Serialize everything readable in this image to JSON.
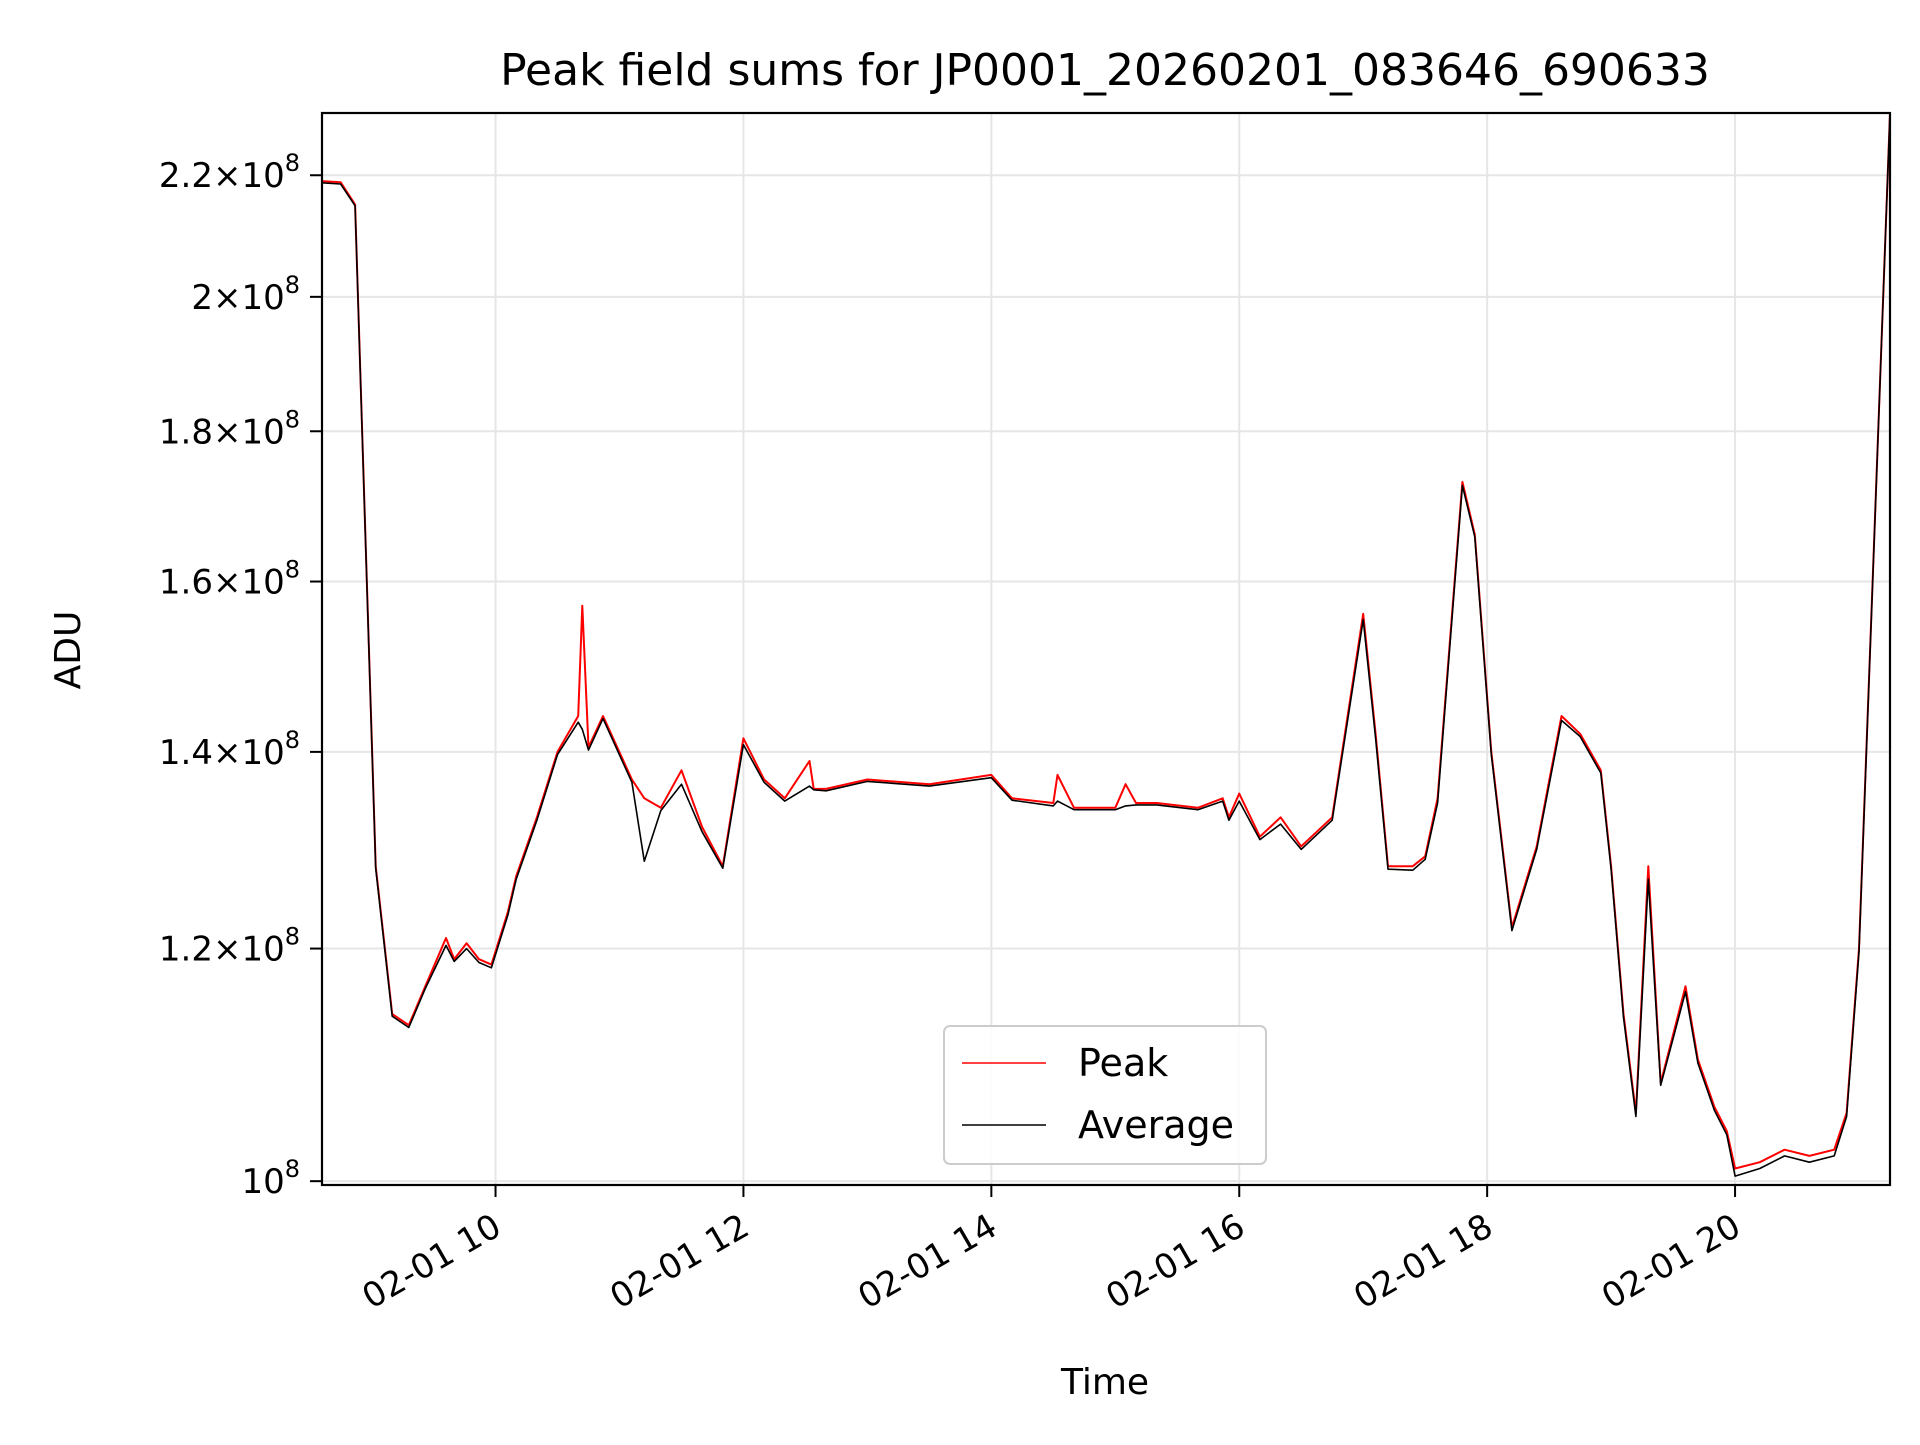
{
  "chart_data": {
    "type": "line",
    "title": "Peak field sums for JP0001_20260201_083646_690633",
    "xlabel": "Time",
    "ylabel": "ADU",
    "y_scale": "log",
    "ylim": [
      99700000,
      231000000
    ],
    "xlim": [
      "02-01 08:36",
      "02-01 21:15"
    ],
    "grid": true,
    "legend_position": "lower-center",
    "x_ticks": [
      {
        "label": "02-01 10",
        "value": "02-01 10:00"
      },
      {
        "label": "02-01 12",
        "value": "02-01 12:00"
      },
      {
        "label": "02-01 14",
        "value": "02-01 14:00"
      },
      {
        "label": "02-01 16",
        "value": "02-01 16:00"
      },
      {
        "label": "02-01 18",
        "value": "02-01 18:00"
      },
      {
        "label": "02-01 20",
        "value": "02-01 20:00"
      }
    ],
    "y_ticks": [
      {
        "mantissa": "",
        "exponent": "8",
        "value": 100000000
      },
      {
        "mantissa": "1.2",
        "exponent": "8",
        "value": 120000000
      },
      {
        "mantissa": "1.4",
        "exponent": "8",
        "value": 140000000
      },
      {
        "mantissa": "1.6",
        "exponent": "8",
        "value": 160000000
      },
      {
        "mantissa": "1.8",
        "exponent": "8",
        "value": 180000000
      },
      {
        "mantissa": "2",
        "exponent": "8",
        "value": 200000000
      },
      {
        "mantissa": "2.2",
        "exponent": "8",
        "value": 220000000
      }
    ],
    "series": [
      {
        "name": "Peak",
        "color": "#ff0000",
        "x": [
          "02-01 08:36",
          "02-01 08:45",
          "02-01 08:52",
          "02-01 09:02",
          "02-01 09:10",
          "02-01 09:18",
          "02-01 09:26",
          "02-01 09:36",
          "02-01 09:40",
          "02-01 09:46",
          "02-01 09:52",
          "02-01 09:58",
          "02-01 10:06",
          "02-01 10:10",
          "02-01 10:20",
          "02-01 10:30",
          "02-01 10:40",
          "02-01 10:42",
          "02-01 10:45",
          "02-01 10:52",
          "02-01 11:06",
          "02-01 11:12",
          "02-01 11:20",
          "02-01 11:30",
          "02-01 11:40",
          "02-01 11:50",
          "02-01 12:00",
          "02-01 12:10",
          "02-01 12:20",
          "02-01 12:32",
          "02-01 12:34",
          "02-01 12:40",
          "02-01 13:00",
          "02-01 13:30",
          "02-01 14:00",
          "02-01 14:10",
          "02-01 14:30",
          "02-01 14:32",
          "02-01 14:40",
          "02-01 15:00",
          "02-01 15:05",
          "02-01 15:10",
          "02-01 15:20",
          "02-01 15:40",
          "02-01 15:52",
          "02-01 15:55",
          "02-01 16:00",
          "02-01 16:10",
          "02-01 16:20",
          "02-01 16:30",
          "02-01 16:45",
          "02-01 17:00",
          "02-01 17:06",
          "02-01 17:12",
          "02-01 17:24",
          "02-01 17:30",
          "02-01 17:36",
          "02-01 17:48",
          "02-01 17:54",
          "02-01 18:02",
          "02-01 18:12",
          "02-01 18:24",
          "02-01 18:36",
          "02-01 18:45",
          "02-01 18:55",
          "02-01 19:00",
          "02-01 19:06",
          "02-01 19:12",
          "02-01 19:18",
          "02-01 19:24",
          "02-01 19:36",
          "02-01 19:42",
          "02-01 19:50",
          "02-01 19:56",
          "02-01 20:00",
          "02-01 20:12",
          "02-01 20:24",
          "02-01 20:36",
          "02-01 20:48",
          "02-01 20:54",
          "02-01 21:00",
          "02-01 21:15"
        ],
        "values": [
          219000000,
          218800000,
          215000000,
          128000000,
          114000000,
          113000000,
          116500000,
          121000000,
          119000000,
          120500000,
          119000000,
          118500000,
          123500000,
          127000000,
          133000000,
          140000000,
          144000000,
          157000000,
          140500000,
          144000000,
          137000000,
          135000000,
          134000000,
          138000000,
          132000000,
          128000000,
          141500000,
          137000000,
          135000000,
          139000000,
          136000000,
          136000000,
          137000000,
          136500000,
          137500000,
          135000000,
          134500000,
          137500000,
          134000000,
          134000000,
          136500000,
          134500000,
          134500000,
          134000000,
          135000000,
          133000000,
          135500000,
          131000000,
          133000000,
          130000000,
          133000000,
          156000000,
          142000000,
          128000000,
          128000000,
          129000000,
          135000000,
          173000000,
          166000000,
          140000000,
          122000000,
          130000000,
          144000000,
          142000000,
          138000000,
          128000000,
          114000000,
          105500000,
          128000000,
          108000000,
          116500000,
          110000000,
          106000000,
          104000000,
          101000000,
          101500000,
          102500000,
          102000000,
          102500000,
          105500000,
          120000000,
          231000000
        ]
      },
      {
        "name": "Average",
        "color": "#000000",
        "x": [
          "02-01 08:36",
          "02-01 08:45",
          "02-01 08:52",
          "02-01 09:02",
          "02-01 09:10",
          "02-01 09:18",
          "02-01 09:26",
          "02-01 09:36",
          "02-01 09:40",
          "02-01 09:46",
          "02-01 09:52",
          "02-01 09:58",
          "02-01 10:06",
          "02-01 10:10",
          "02-01 10:20",
          "02-01 10:30",
          "02-01 10:40",
          "02-01 10:42",
          "02-01 10:45",
          "02-01 10:52",
          "02-01 11:06",
          "02-01 11:12",
          "02-01 11:20",
          "02-01 11:30",
          "02-01 11:40",
          "02-01 11:50",
          "02-01 12:00",
          "02-01 12:10",
          "02-01 12:20",
          "02-01 12:32",
          "02-01 12:34",
          "02-01 12:40",
          "02-01 13:00",
          "02-01 13:30",
          "02-01 14:00",
          "02-01 14:10",
          "02-01 14:30",
          "02-01 14:32",
          "02-01 14:40",
          "02-01 15:00",
          "02-01 15:05",
          "02-01 15:10",
          "02-01 15:20",
          "02-01 15:40",
          "02-01 15:52",
          "02-01 15:55",
          "02-01 16:00",
          "02-01 16:10",
          "02-01 16:20",
          "02-01 16:30",
          "02-01 16:45",
          "02-01 17:00",
          "02-01 17:06",
          "02-01 17:12",
          "02-01 17:24",
          "02-01 17:30",
          "02-01 17:36",
          "02-01 17:48",
          "02-01 17:54",
          "02-01 18:02",
          "02-01 18:12",
          "02-01 18:24",
          "02-01 18:36",
          "02-01 18:45",
          "02-01 18:55",
          "02-01 19:00",
          "02-01 19:06",
          "02-01 19:12",
          "02-01 19:18",
          "02-01 19:24",
          "02-01 19:36",
          "02-01 19:42",
          "02-01 19:50",
          "02-01 19:56",
          "02-01 20:00",
          "02-01 20:12",
          "02-01 20:24",
          "02-01 20:36",
          "02-01 20:48",
          "02-01 20:54",
          "02-01 21:00",
          "02-01 21:15"
        ],
        "values": [
          218700000,
          218500000,
          214800000,
          127800000,
          113800000,
          112800000,
          116300000,
          120300000,
          118800000,
          120000000,
          118700000,
          118200000,
          123200000,
          126700000,
          132700000,
          139700000,
          143300000,
          142500000,
          140200000,
          143700000,
          136700000,
          128500000,
          133700000,
          136500000,
          131500000,
          127800000,
          140800000,
          136700000,
          134700000,
          136300000,
          135900000,
          135800000,
          136800000,
          136300000,
          137200000,
          134800000,
          134200000,
          134700000,
          133800000,
          133800000,
          134200000,
          134300000,
          134300000,
          133800000,
          134700000,
          132700000,
          134700000,
          130700000,
          132300000,
          129700000,
          132700000,
          155300000,
          141500000,
          127700000,
          127600000,
          128700000,
          134500000,
          172500000,
          165700000,
          139700000,
          121700000,
          129700000,
          143500000,
          141700000,
          137700000,
          127700000,
          113700000,
          105200000,
          126700000,
          107800000,
          116000000,
          109700000,
          105700000,
          103700000,
          100400000,
          101000000,
          102000000,
          101500000,
          102000000,
          105200000,
          119700000,
          231000000
        ]
      }
    ]
  }
}
